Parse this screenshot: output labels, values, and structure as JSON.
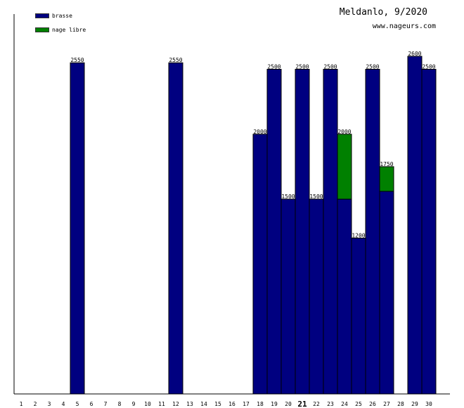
{
  "chart_data": {
    "type": "bar",
    "stacked": true,
    "title": "Meldanlo, 9/2020",
    "subtitle": "www.nageurs.com",
    "categories": [
      "1",
      "2",
      "3",
      "4",
      "5",
      "6",
      "7",
      "8",
      "9",
      "10",
      "11",
      "12",
      "13",
      "14",
      "15",
      "16",
      "17",
      "18",
      "19",
      "20",
      "21",
      "22",
      "23",
      "24",
      "25",
      "26",
      "27",
      "28",
      "29",
      "30"
    ],
    "highlight_category": "21",
    "series": [
      {
        "name": "brasse",
        "color": "#000080",
        "values": [
          0,
          0,
          0,
          0,
          2550,
          0,
          0,
          0,
          0,
          0,
          0,
          2550,
          0,
          0,
          0,
          0,
          0,
          2000,
          2500,
          1500,
          2500,
          1500,
          2500,
          1500,
          1200,
          2500,
          1560,
          0,
          2600,
          2500
        ]
      },
      {
        "name": "nage libre",
        "color": "#008000",
        "values": [
          0,
          0,
          0,
          0,
          0,
          0,
          0,
          0,
          0,
          0,
          0,
          0,
          0,
          0,
          0,
          0,
          0,
          0,
          0,
          0,
          0,
          0,
          0,
          500,
          0,
          0,
          190,
          0,
          0,
          0
        ]
      }
    ],
    "totals": [
      0,
      0,
      0,
      0,
      2550,
      0,
      0,
      0,
      0,
      0,
      0,
      2550,
      0,
      0,
      0,
      0,
      0,
      2000,
      2500,
      1500,
      2500,
      1500,
      2500,
      2000,
      1200,
      2500,
      1750,
      0,
      2600,
      2500
    ],
    "ylim": [
      0,
      2600
    ],
    "grid": false,
    "legend_position": "top-left"
  }
}
